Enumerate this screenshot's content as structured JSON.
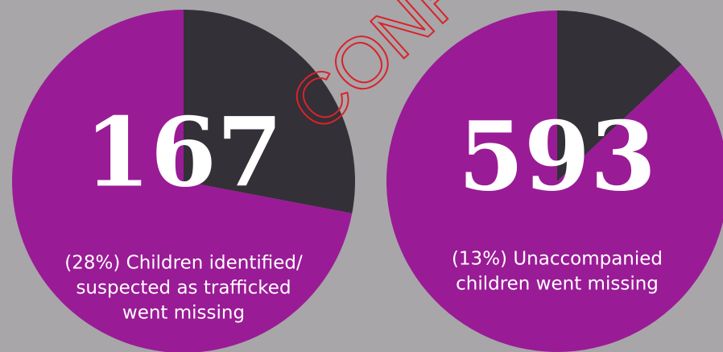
{
  "chart_data": [
    {
      "type": "pie",
      "title": "167",
      "subtitle": [
        "(28%) Children identified/",
        "suspected as trafficked",
        "went missing"
      ],
      "values": [
        28,
        72
      ],
      "colors": [
        "#333037",
        "#9a1b96"
      ]
    },
    {
      "type": "pie",
      "title": "593",
      "subtitle": [
        "(13%) Unaccompanied",
        "children went missing"
      ],
      "values": [
        13,
        87
      ],
      "colors": [
        "#333037",
        "#9a1b96"
      ]
    }
  ],
  "watermark": "CONF"
}
